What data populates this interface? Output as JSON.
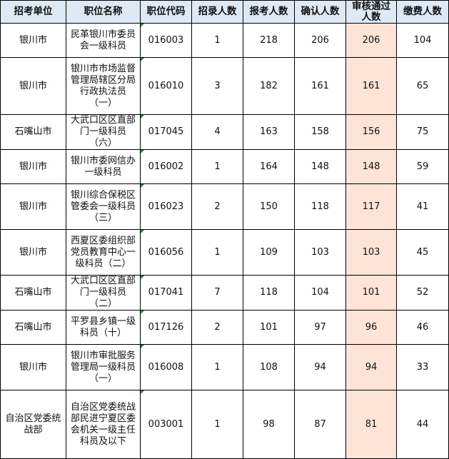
{
  "table": {
    "headers": [
      "招考单位",
      "职位名称",
      "职位代码",
      "招录人数",
      "报考人数",
      "确认人数",
      "审核通过人数",
      "缴费人数"
    ],
    "highlight_color": "#fde4d6",
    "header_color": "#dde9f5",
    "rows": [
      {
        "unit": "银川市",
        "position": "民革银川市委员会一级科员",
        "code": "016003",
        "quota": "1",
        "applied": "218",
        "confirmed": "206",
        "approved": "206",
        "paid": "104"
      },
      {
        "unit": "银川市",
        "position": "银川市市场监督管理局辖区分局行政执法员（一）",
        "code": "016010",
        "quota": "3",
        "applied": "182",
        "confirmed": "161",
        "approved": "161",
        "paid": "65"
      },
      {
        "unit": "石嘴山市",
        "position": "大武口区区直部门一级科员（六）",
        "code": "017045",
        "quota": "4",
        "applied": "163",
        "confirmed": "158",
        "approved": "156",
        "paid": "75"
      },
      {
        "unit": "银川市",
        "position": "银川市委网信办一级科员",
        "code": "016002",
        "quota": "1",
        "applied": "164",
        "confirmed": "148",
        "approved": "148",
        "paid": "59"
      },
      {
        "unit": "银川市",
        "position": "银川综合保税区管委会一级科员（三）",
        "code": "016023",
        "quota": "2",
        "applied": "150",
        "confirmed": "118",
        "approved": "117",
        "paid": "41"
      },
      {
        "unit": "银川市",
        "position": "西夏区委组织部党员教育中心一级科员（二）",
        "code": "016056",
        "quota": "1",
        "applied": "109",
        "confirmed": "103",
        "approved": "103",
        "paid": "45"
      },
      {
        "unit": "石嘴山市",
        "position": "大武口区区直部门一级科员（二）",
        "code": "017041",
        "quota": "7",
        "applied": "118",
        "confirmed": "104",
        "approved": "101",
        "paid": "52"
      },
      {
        "unit": "石嘴山市",
        "position": "平罗县乡镇一级科员（十）",
        "code": "017126",
        "quota": "2",
        "applied": "101",
        "confirmed": "97",
        "approved": "96",
        "paid": "46"
      },
      {
        "unit": "银川市",
        "position": "银川市审批服务管理局一级科员（一）",
        "code": "016008",
        "quota": "1",
        "applied": "108",
        "confirmed": "94",
        "approved": "94",
        "paid": "33"
      },
      {
        "unit": "自治区党委统战部",
        "position": "自治区党委统战部民进宁夏区委会机关一级主任科员及以下",
        "code": "003001",
        "quota": "1",
        "applied": "98",
        "confirmed": "87",
        "approved": "81",
        "paid": "44"
      }
    ]
  }
}
